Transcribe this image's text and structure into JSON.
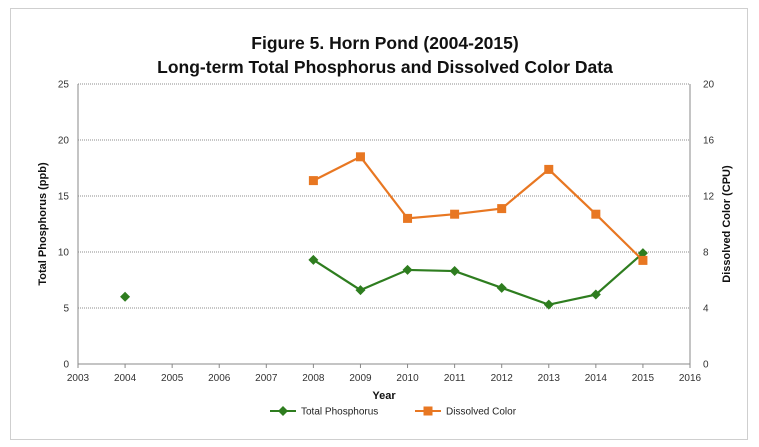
{
  "chart_data": {
    "type": "line",
    "title": "Figure 5. Horn Pond (2004-2015)",
    "subtitle": "Long-term Total Phosphorus and Dissolved Color Data",
    "xlabel": "Year",
    "ylabel_left": "Total Phosphorus (ppb)",
    "ylabel_right": "Dissolved Color (CPU)",
    "xlim": [
      2003,
      2016
    ],
    "x_ticks": [
      "2003",
      "2004",
      "2005",
      "2006",
      "2007",
      "2008",
      "2009",
      "2010",
      "2011",
      "2012",
      "2013",
      "2014",
      "2015",
      "2016"
    ],
    "ylim_left": [
      0,
      25
    ],
    "y_ticks_left": [
      "0",
      "5",
      "10",
      "15",
      "20",
      "25"
    ],
    "ylim_right": [
      0,
      20
    ],
    "y_ticks_right": [
      "0",
      "4",
      "8",
      "12",
      "16",
      "20"
    ],
    "grid": true,
    "legend_position": "bottom",
    "series": [
      {
        "name": "Total Phosphorus",
        "axis": "left",
        "color": "#2e7d1f",
        "marker": "diamond",
        "points": [
          {
            "x": 2004,
            "y": 6.0,
            "connected": false
          },
          {
            "x": 2008,
            "y": 9.3,
            "connected": true
          },
          {
            "x": 2009,
            "y": 6.6,
            "connected": true
          },
          {
            "x": 2010,
            "y": 8.4,
            "connected": true
          },
          {
            "x": 2011,
            "y": 8.3,
            "connected": true
          },
          {
            "x": 2012,
            "y": 6.8,
            "connected": true
          },
          {
            "x": 2013,
            "y": 5.3,
            "connected": true
          },
          {
            "x": 2014,
            "y": 6.2,
            "connected": true
          },
          {
            "x": 2015,
            "y": 9.9,
            "connected": true
          }
        ]
      },
      {
        "name": "Dissolved Color",
        "axis": "right",
        "color": "#e87722",
        "marker": "square",
        "points": [
          {
            "x": 2008,
            "y": 13.1,
            "connected": true
          },
          {
            "x": 2009,
            "y": 14.8,
            "connected": true
          },
          {
            "x": 2010,
            "y": 10.4,
            "connected": true
          },
          {
            "x": 2011,
            "y": 10.7,
            "connected": true
          },
          {
            "x": 2012,
            "y": 11.1,
            "connected": true
          },
          {
            "x": 2013,
            "y": 13.9,
            "connected": true
          },
          {
            "x": 2014,
            "y": 10.7,
            "connected": true
          },
          {
            "x": 2015,
            "y": 7.4,
            "connected": true
          }
        ]
      }
    ]
  }
}
